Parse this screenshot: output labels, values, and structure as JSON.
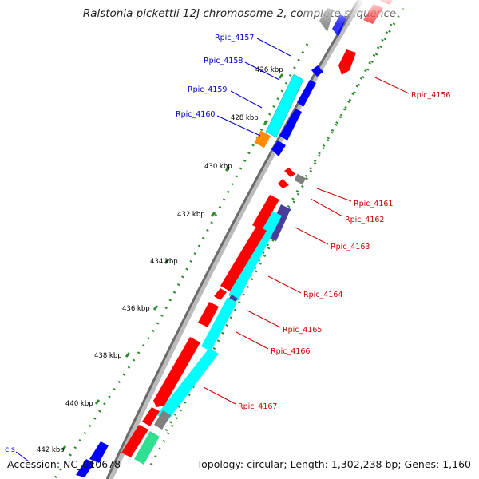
{
  "title": "Ralstonia pickettii 12J chromosome 2, complete sequence",
  "footer": {
    "accession": "Accession: NC_010678",
    "summary": "Topology: circular; Length: 1,302,238 bp; Genes: 1,160"
  },
  "colors": {
    "backbone": "#8c8c8c",
    "tick": "#2e8b2e",
    "forward_cds": "#0000ff",
    "reverse_cds": "#ff0000",
    "rna": "#00ffff",
    "other": "#ff8c00",
    "misc": "#808080",
    "label_forward": "#0000cc",
    "label_reverse": "#cc0000"
  },
  "scale_labels": [
    "426 kbp",
    "428 kbp",
    "430 kbp",
    "432 kbp",
    "434 kbp",
    "436 kbp",
    "438 kbp",
    "440 kbp",
    "442 kbp"
  ],
  "forward_gene_labels": [
    "Rpic_4157",
    "Rpic_4158",
    "Rpic_4159",
    "Rpic_4160",
    "cls"
  ],
  "reverse_gene_labels": [
    "Rpic_4156",
    "Rpic_4161",
    "Rpic_4162",
    "Rpic_4163",
    "Rpic_4164",
    "Rpic_4165",
    "Rpic_4166",
    "Rpic_4167"
  ]
}
